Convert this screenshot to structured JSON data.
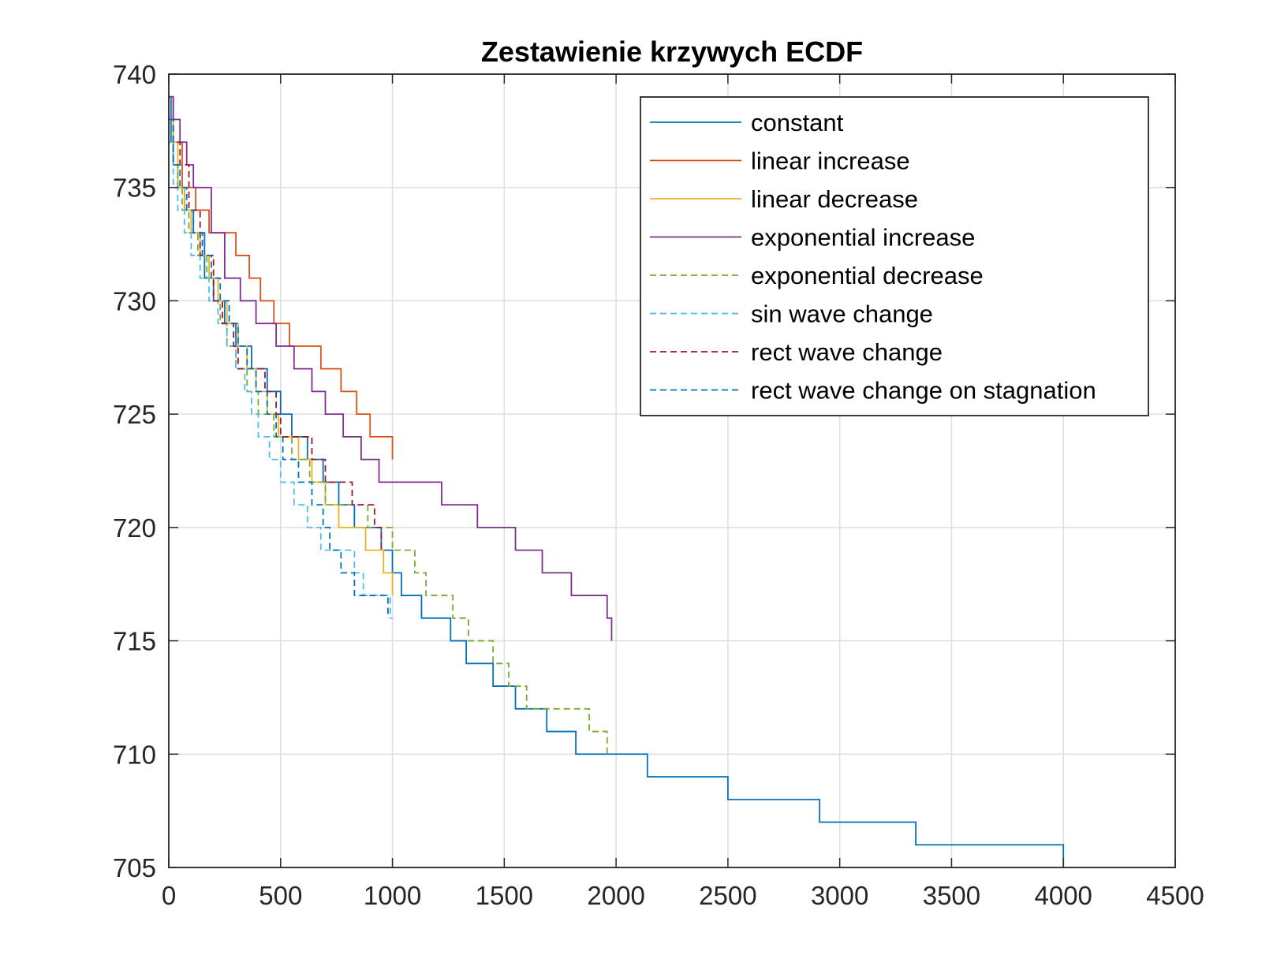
{
  "chart_data": {
    "type": "line",
    "title": "Zestawienie krzywych ECDF",
    "xlabel": "",
    "ylabel": "",
    "xlim": [
      0,
      4500
    ],
    "ylim": [
      705,
      740
    ],
    "xticks": [
      0,
      500,
      1000,
      1500,
      2000,
      2500,
      3000,
      3500,
      4000,
      4500
    ],
    "yticks": [
      705,
      710,
      715,
      720,
      725,
      730,
      735,
      740
    ],
    "grid": true,
    "legend_position": "top-right",
    "series": [
      {
        "name": "constant",
        "color": "#0072BD",
        "dash": "solid",
        "x": [
          0,
          10,
          20,
          40,
          70,
          110,
          160,
          200,
          250,
          300,
          370,
          440,
          500,
          550,
          620,
          690,
          760,
          830,
          950,
          1000,
          1040,
          1130,
          1260,
          1330,
          1450,
          1550,
          1690,
          1820,
          2140,
          2500,
          2910,
          3340,
          4000
        ],
        "y": [
          739,
          737,
          736,
          735,
          734,
          733,
          731,
          730,
          729,
          728,
          727,
          726,
          725,
          724,
          723,
          722,
          721,
          720,
          719,
          718,
          717,
          716,
          715,
          714,
          713,
          712,
          711,
          710,
          709,
          708,
          707,
          706,
          705
        ]
      },
      {
        "name": "linear increase",
        "color": "#D95319",
        "dash": "solid",
        "x": [
          0,
          20,
          60,
          120,
          180,
          300,
          360,
          410,
          470,
          540,
          680,
          770,
          840,
          900,
          1000
        ],
        "y": [
          739,
          737,
          735,
          734,
          733,
          732,
          731,
          730,
          729,
          728,
          727,
          726,
          725,
          724,
          723
        ]
      },
      {
        "name": "linear decrease",
        "color": "#EDB120",
        "dash": "solid",
        "x": [
          0,
          20,
          40,
          70,
          100,
          140,
          180,
          220,
          260,
          310,
          350,
          390,
          440,
          490,
          580,
          640,
          700,
          760,
          880,
          960,
          1000
        ],
        "y": [
          739,
          737,
          735,
          734,
          733,
          732,
          731,
          730,
          729,
          728,
          727,
          726,
          725,
          724,
          723,
          722,
          721,
          720,
          719,
          718,
          717
        ]
      },
      {
        "name": "exponential increase",
        "color": "#7E2F8E",
        "dash": "solid",
        "x": [
          0,
          20,
          50,
          80,
          110,
          190,
          250,
          320,
          390,
          480,
          560,
          640,
          700,
          780,
          860,
          940,
          1000,
          1220,
          1380,
          1550,
          1670,
          1800,
          1960,
          1980
        ],
        "y": [
          739,
          738,
          737,
          736,
          735,
          733,
          731,
          730,
          729,
          728,
          727,
          726,
          725,
          724,
          723,
          722,
          722,
          721,
          720,
          719,
          718,
          717,
          716,
          715
        ]
      },
      {
        "name": "exponential decrease",
        "color": "#77AC30",
        "dash": "dashed",
        "x": [
          0,
          20,
          40,
          60,
          90,
          130,
          170,
          200,
          230,
          260,
          300,
          350,
          400,
          470,
          550,
          630,
          700,
          830,
          890,
          1000,
          1100,
          1150,
          1270,
          1340,
          1450,
          1520,
          1600,
          1880,
          1960
        ],
        "y": [
          738,
          736,
          735,
          734,
          733,
          732,
          731,
          730,
          729,
          728,
          727,
          726,
          725,
          724,
          723,
          722,
          721,
          721,
          720,
          719,
          718,
          717,
          716,
          715,
          714,
          713,
          712,
          711,
          710
        ]
      },
      {
        "name": "sin wave change",
        "color": "#4DBEEE",
        "dash": "dashed",
        "x": [
          0,
          20,
          40,
          70,
          100,
          140,
          180,
          220,
          260,
          300,
          340,
          370,
          400,
          450,
          500,
          560,
          620,
          680,
          740,
          830,
          870,
          990,
          1000
        ],
        "y": [
          737,
          735,
          734,
          733,
          732,
          731,
          730,
          729,
          728,
          727,
          726,
          725,
          724,
          723,
          722,
          721,
          720,
          719,
          719,
          718,
          717,
          716,
          716
        ]
      },
      {
        "name": "rect wave change",
        "color": "#A2142F",
        "dash": "dashed",
        "x": [
          0,
          20,
          50,
          90,
          140,
          200,
          240,
          290,
          310,
          430,
          480,
          500,
          640,
          700,
          820,
          920,
          950,
          960
        ],
        "y": [
          738,
          737,
          736,
          734,
          732,
          730,
          729,
          728,
          727,
          726,
          725,
          724,
          723,
          722,
          721,
          720,
          719,
          719
        ]
      },
      {
        "name": "rect wave change on stagnation",
        "color": "#0072BD",
        "dash": "dashed",
        "x": [
          0,
          20,
          50,
          80,
          110,
          150,
          190,
          230,
          270,
          310,
          350,
          390,
          440,
          480,
          510,
          580,
          640,
          690,
          720,
          770,
          830,
          980
        ],
        "y": [
          738,
          736,
          735,
          734,
          733,
          732,
          731,
          730,
          729,
          728,
          727,
          726,
          725,
          724,
          723,
          722,
          721,
          720,
          719,
          718,
          717,
          716
        ]
      }
    ]
  }
}
